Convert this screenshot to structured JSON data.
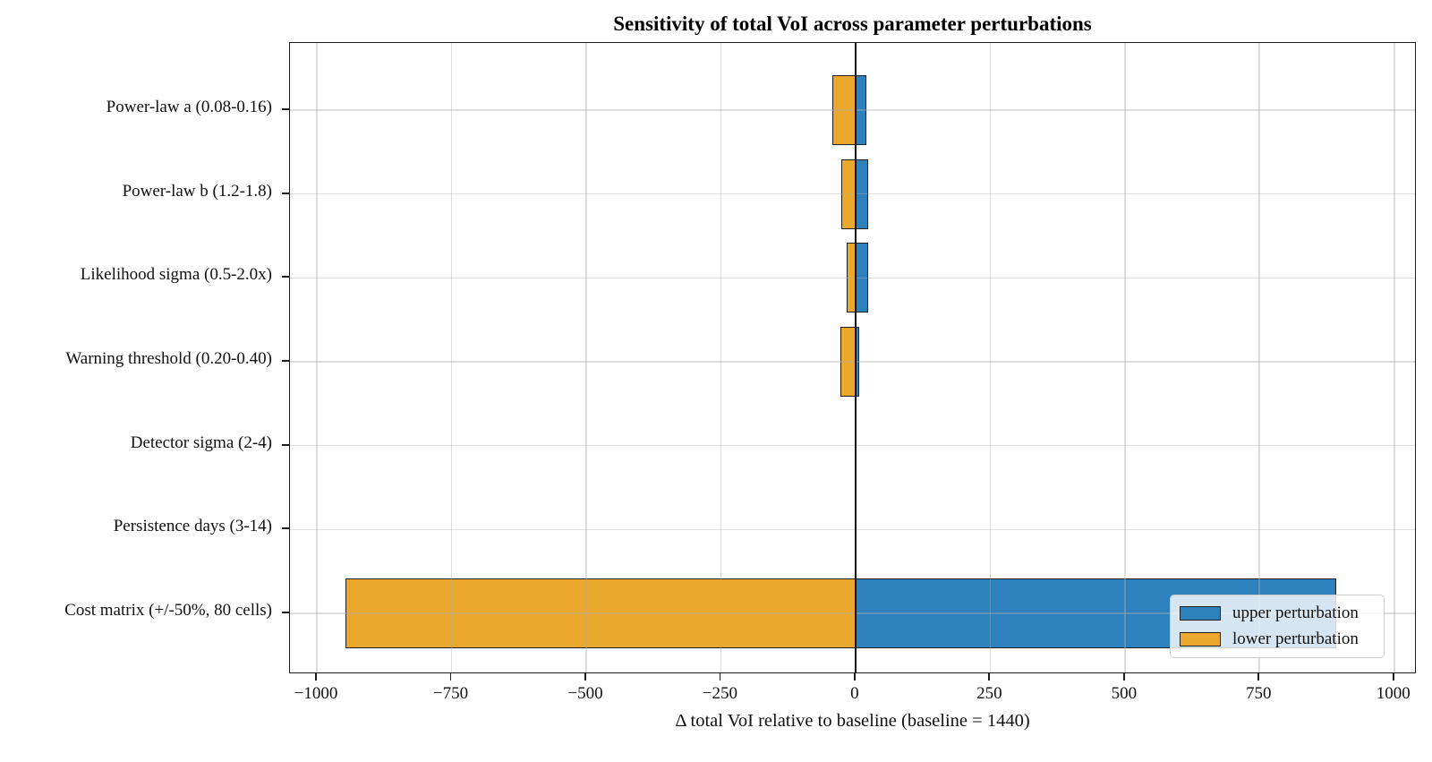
{
  "figure": {
    "title": "Sensitivity of total VoI across parameter perturbations",
    "background_color": "#ffffff"
  },
  "chart_data": {
    "type": "bar",
    "orientation": "horizontal",
    "title": "Sensitivity of total VoI across parameter perturbations",
    "xlabel": "Δ total VoI relative to baseline (baseline = 1440)",
    "ylabel": "",
    "baseline_value": 1440,
    "categories": [
      "Power-law a (0.08-0.16)",
      "Power-law b (1.2-1.8)",
      "Likelihood sigma (0.5-2.0x)",
      "Warning threshold (0.20-0.40)",
      "Detector sigma (2-4)",
      "Persistence days (3-14)",
      "Cost matrix (+/-50%, 80 cells)"
    ],
    "series": [
      {
        "name": "upper perturbation",
        "color": "#2d82bd",
        "values": [
          20,
          23,
          24,
          7,
          0,
          0,
          892
        ]
      },
      {
        "name": "lower perturbation",
        "color": "#eaa82c",
        "values": [
          -43,
          -26,
          -17,
          -28,
          0,
          0,
          -947
        ]
      }
    ],
    "x_ticks": [
      -1000,
      -750,
      -500,
      -250,
      0,
      250,
      500,
      750,
      1000
    ],
    "x_tick_labels": [
      "−1000",
      "−750",
      "−500",
      "−250",
      "0",
      "250",
      "500",
      "750",
      "1000"
    ],
    "xlim": [
      -1050,
      1042
    ],
    "grid": true,
    "zero_line": true,
    "bar_edge_color": "#1f1f1f",
    "legend_position": "lower right"
  },
  "legend": {
    "items": [
      {
        "label": "upper perturbation",
        "color": "#2d82bd"
      },
      {
        "label": "lower perturbation",
        "color": "#eaa82c"
      }
    ]
  }
}
